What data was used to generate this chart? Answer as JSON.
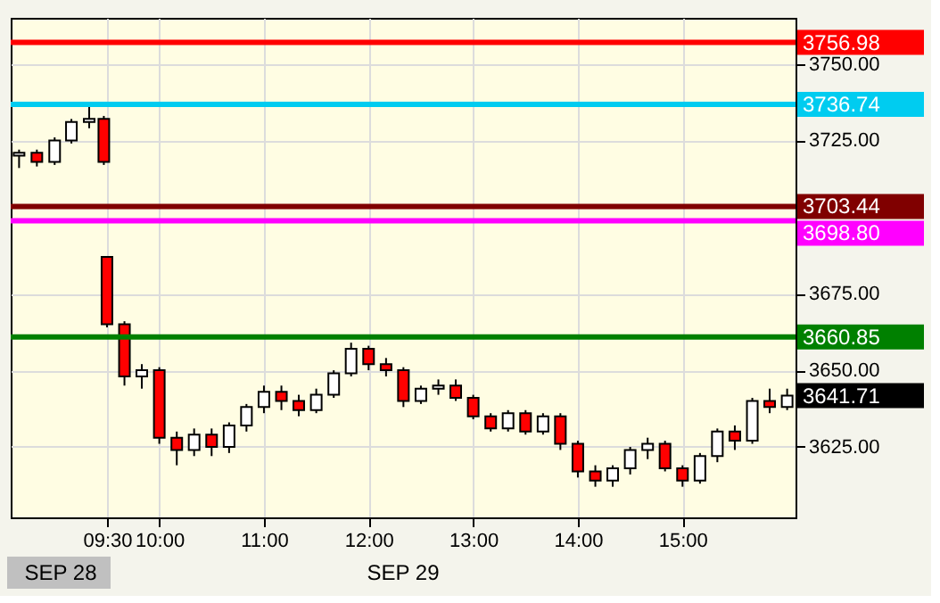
{
  "chart_data": {
    "type": "candlestick",
    "x": [
      8.66,
      8.83,
      9.0,
      9.16,
      9.33,
      9.47,
      9.5,
      9.667,
      9.833,
      10.0,
      10.167,
      10.333,
      10.5,
      10.667,
      10.833,
      11.0,
      11.167,
      11.333,
      11.5,
      11.667,
      11.833,
      12.0,
      12.167,
      12.333,
      12.5,
      12.667,
      12.833,
      13.0,
      13.167,
      13.333,
      13.5,
      13.667,
      13.833,
      14.0,
      14.167,
      14.333,
      14.5,
      14.667,
      14.833,
      15.0,
      15.167,
      15.333,
      15.5,
      15.667,
      15.833,
      16.0
    ],
    "ohlc": [
      [
        3720,
        3722,
        3716,
        3721
      ],
      [
        3721,
        3722,
        3716.5,
        3718
      ],
      [
        3718,
        3726,
        3717,
        3725
      ],
      [
        3725,
        3732,
        3724,
        3731
      ],
      [
        3731,
        3736,
        3729,
        3732
      ],
      [
        3732,
        3733,
        3717,
        3718
      ],
      [
        3687,
        3687,
        3664,
        3665
      ],
      [
        3665,
        3666,
        3645,
        3648
      ],
      [
        3648,
        3652,
        3644,
        3650
      ],
      [
        3650,
        3651,
        3626,
        3628
      ],
      [
        3628,
        3630,
        3619,
        3624
      ],
      [
        3624,
        3631,
        3622,
        3629
      ],
      [
        3629,
        3631,
        3622,
        3625
      ],
      [
        3625,
        3633,
        3623,
        3632
      ],
      [
        3632,
        3639,
        3630,
        3638
      ],
      [
        3638,
        3645,
        3636,
        3643
      ],
      [
        3643,
        3645,
        3637,
        3640
      ],
      [
        3640,
        3642,
        3635,
        3637
      ],
      [
        3637,
        3644,
        3636,
        3642
      ],
      [
        3642,
        3650,
        3641,
        3649
      ],
      [
        3649,
        3659,
        3648,
        3657
      ],
      [
        3657,
        3658,
        3650,
        3652
      ],
      [
        3652,
        3654,
        3648,
        3650
      ],
      [
        3650,
        3651,
        3638,
        3640
      ],
      [
        3640,
        3645,
        3639,
        3644
      ],
      [
        3644,
        3647,
        3642,
        3645
      ],
      [
        3645,
        3647,
        3640,
        3641
      ],
      [
        3641,
        3642,
        3634,
        3635
      ],
      [
        3635,
        3636,
        3630,
        3631
      ],
      [
        3631,
        3637,
        3630,
        3636
      ],
      [
        3636,
        3637,
        3629,
        3630
      ],
      [
        3630,
        3636,
        3629,
        3635
      ],
      [
        3635,
        3636,
        3624,
        3626
      ],
      [
        3626,
        3627,
        3615,
        3617
      ],
      [
        3617,
        3619,
        3612,
        3614
      ],
      [
        3614,
        3619,
        3612,
        3618
      ],
      [
        3618,
        3625,
        3616,
        3624
      ],
      [
        3624,
        3628,
        3621,
        3626
      ],
      [
        3626,
        3627,
        3617,
        3618
      ],
      [
        3618,
        3619,
        3612,
        3614
      ],
      [
        3614,
        3623,
        3613,
        3622
      ],
      [
        3622,
        3631,
        3620,
        3630
      ],
      [
        3630,
        3632,
        3624,
        3627
      ],
      [
        3627,
        3641,
        3626,
        3640
      ],
      [
        3640,
        3644,
        3636,
        3638
      ],
      [
        3638,
        3644,
        3637,
        3641.71
      ]
    ],
    "colors": [
      "#ffffff",
      "#ff0000",
      "#ffffff",
      "#ffffff",
      "#ffffff",
      "#ff0000",
      "#ff0000",
      "#ff0000",
      "#ffffff",
      "#ff0000",
      "#ff0000",
      "#ffffff",
      "#ff0000",
      "#ffffff",
      "#ffffff",
      "#ffffff",
      "#ff0000",
      "#ff0000",
      "#ffffff",
      "#ffffff",
      "#ffffff",
      "#ff0000",
      "#ff0000",
      "#ff0000",
      "#ffffff",
      "#ffffff",
      "#ff0000",
      "#ff0000",
      "#ff0000",
      "#ffffff",
      "#ff0000",
      "#ffffff",
      "#ff0000",
      "#ff0000",
      "#ff0000",
      "#ffffff",
      "#ffffff",
      "#ffffff",
      "#ff0000",
      "#ff0000",
      "#ffffff",
      "#ffffff",
      "#ff0000",
      "#ffffff",
      "#ff0000",
      "#ffffff"
    ],
    "xlim": [
      8.58,
      16.08
    ],
    "xticks": [
      {
        "value": 9.5,
        "label": "09:30"
      },
      {
        "value": 10,
        "label": "10:00"
      },
      {
        "value": 11,
        "label": "11:00"
      },
      {
        "value": 12,
        "label": "12:00"
      },
      {
        "value": 13,
        "label": "13:00"
      },
      {
        "value": 14,
        "label": "14:00"
      },
      {
        "value": 15,
        "label": "15:00"
      }
    ],
    "ylim": [
      3602,
      3765
    ],
    "yticks": [
      {
        "value": 3625,
        "label": "3625.00"
      },
      {
        "value": 3650,
        "label": "3650.00"
      },
      {
        "value": 3675,
        "label": "3675.00"
      },
      {
        "value": 3725,
        "label": "3725.00"
      },
      {
        "value": 3750,
        "label": "3750.00"
      }
    ],
    "ref_lines": [
      {
        "axis": "y",
        "value": 3756.98,
        "label": "3756.98",
        "color": "#ff0000"
      },
      {
        "axis": "y",
        "value": 3736.74,
        "label": "3736.74",
        "color": "#00ccf0"
      },
      {
        "axis": "y",
        "value": 3703.44,
        "label": "3703.44",
        "color": "#800000"
      },
      {
        "axis": "y",
        "value": 3698.8,
        "label": "3698.80",
        "color": "#ff00ff"
      },
      {
        "axis": "y",
        "value": 3660.85,
        "label": "3660.85",
        "color": "#008000"
      }
    ],
    "annotations": [
      "SEP 28",
      "SEP 29",
      "3641.71"
    ],
    "grid": true
  }
}
